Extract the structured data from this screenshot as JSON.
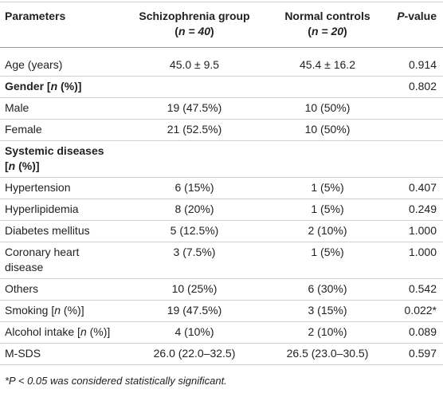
{
  "table": {
    "header": {
      "parameters": "Parameters",
      "schizophrenia": [
        "Schizophrenia group",
        "(",
        "n = 40",
        ")"
      ],
      "controls": [
        "Normal controls",
        "(",
        "n = 20",
        ")"
      ],
      "p": [
        "P",
        "-value"
      ]
    },
    "rows": [
      {
        "label": "Age (years)",
        "schizophrenia": "45.0 ± 9.5",
        "controls": "45.4 ± 16.2",
        "p": "0.914"
      },
      {
        "label": [
          "Gender [",
          "n",
          " (%)]"
        ],
        "p": "0.802"
      },
      {
        "label": "Male",
        "schizophrenia": "19 (47.5%)",
        "controls": "10 (50%)"
      },
      {
        "label": "Female",
        "schizophrenia": "21 (52.5%)",
        "controls": "10 (50%)"
      },
      {
        "label": [
          "Systemic diseases [",
          "n",
          " (%)]"
        ]
      },
      {
        "label": "Hypertension",
        "schizophrenia": "6 (15%)",
        "controls": "1 (5%)",
        "p": "0.407"
      },
      {
        "label": "Hyperlipidemia",
        "schizophrenia": "8 (20%)",
        "controls": "1 (5%)",
        "p": "0.249"
      },
      {
        "label": "Diabetes mellitus",
        "schizophrenia": "5 (12.5%)",
        "controls": "2 (10%)",
        "p": "1.000"
      },
      {
        "label": "Coronary heart disease",
        "schizophrenia": "3 (7.5%)",
        "controls": "1 (5%)",
        "p": "1.000"
      },
      {
        "label": "Others",
        "schizophrenia": "10 (25%)",
        "controls": "6 (30%)",
        "p": "0.542"
      },
      {
        "label": [
          "Smoking [",
          "n",
          " (%)]"
        ],
        "schizophrenia": "19 (47.5%)",
        "controls": "3 (15%)",
        "p": "0.022*"
      },
      {
        "label": [
          "Alcohol intake [",
          "n",
          " (%)]"
        ],
        "schizophrenia": "4 (10%)",
        "controls": "2 (10%)",
        "p": "0.089"
      },
      {
        "label": "M-SDS",
        "schizophrenia": "26.0 (22.0–32.5)",
        "controls": "26.5 (23.0–30.5)",
        "p": "0.597"
      }
    ],
    "footnote": "*P < 0.05 was considered statistically significant."
  }
}
